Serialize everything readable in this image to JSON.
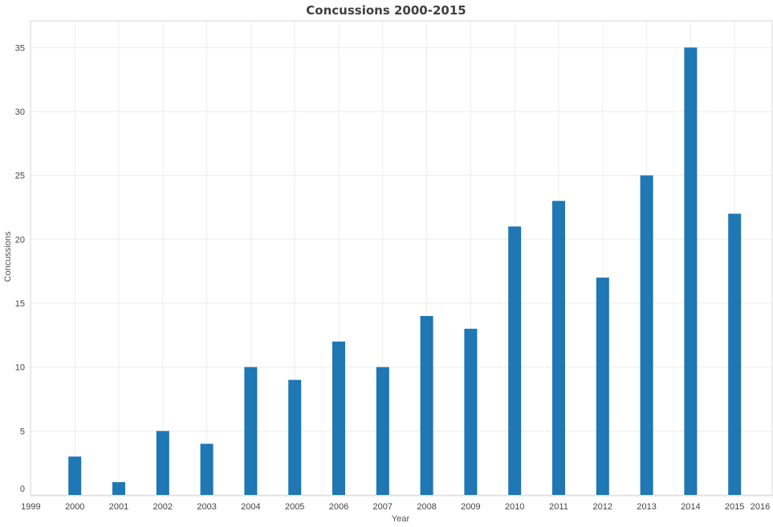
{
  "chart_data": {
    "type": "bar",
    "title": "Concussions 2000-2015",
    "xlabel": "Year",
    "ylabel": "Concussions",
    "x_ticks": [
      1999,
      2000,
      2001,
      2002,
      2003,
      2004,
      2005,
      2006,
      2007,
      2008,
      2009,
      2010,
      2011,
      2012,
      2013,
      2014,
      2015,
      2016
    ],
    "y_ticks": [
      0,
      5,
      10,
      15,
      20,
      25,
      30,
      35
    ],
    "xlim": [
      1999,
      2016
    ],
    "ylim": [
      0,
      37
    ],
    "categories": [
      2000,
      2001,
      2002,
      2003,
      2004,
      2005,
      2006,
      2007,
      2008,
      2009,
      2010,
      2011,
      2012,
      2013,
      2014,
      2015
    ],
    "values": [
      3,
      1,
      5,
      4,
      10,
      9,
      12,
      10,
      14,
      13,
      21,
      23,
      17,
      25,
      35,
      22
    ],
    "bar_color": "#1f77b4",
    "grid": true,
    "legend": "none"
  }
}
